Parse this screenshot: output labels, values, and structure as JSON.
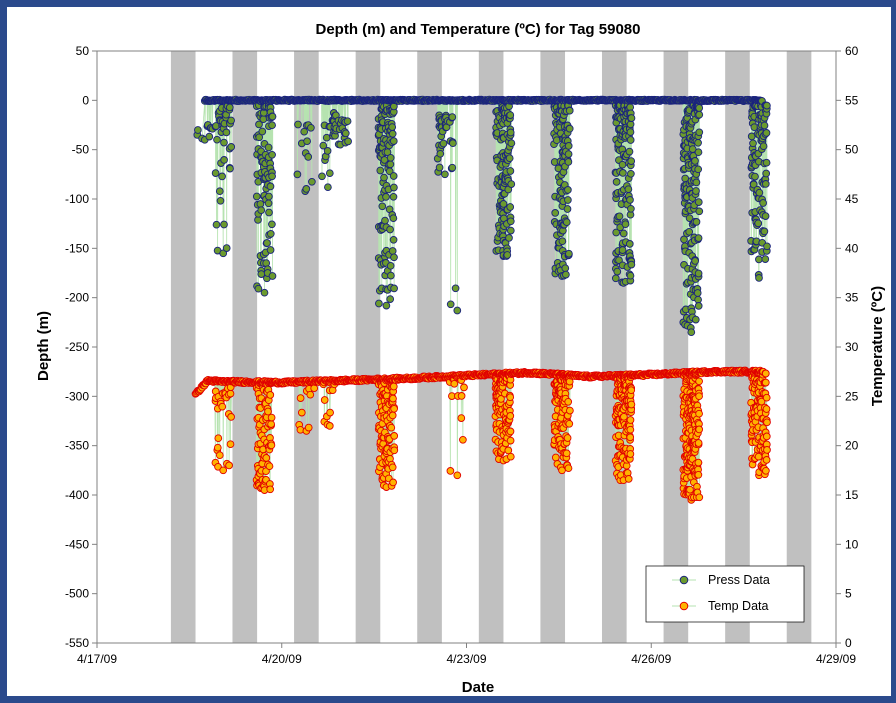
{
  "chart_data": {
    "type": "scatter",
    "title": "Depth (m) and Temperature (ºC) for Tag 59080",
    "xlabel": "Date",
    "ylabel": "Depth (m)",
    "y2label": "Temperature (ºC)",
    "xlim": [
      "4/17/09",
      "4/29/09"
    ],
    "xticks": [
      "4/17/09",
      "4/20/09",
      "4/23/09",
      "4/26/09",
      "4/29/09"
    ],
    "ylim": [
      -550,
      50
    ],
    "yticks": [
      50,
      0,
      -50,
      -100,
      -150,
      -200,
      -250,
      -300,
      -350,
      -400,
      -450,
      -500,
      -550
    ],
    "y2lim": [
      0,
      60
    ],
    "y2ticks": [
      60,
      55,
      50,
      45,
      40,
      35,
      30,
      25,
      20,
      15,
      10,
      5,
      0
    ],
    "grid": false,
    "legend_position": "bottom-right",
    "night_shading": {
      "color": "#c0c0c0",
      "bands_day_of_april": [
        [
          18.2,
          18.6
        ],
        [
          19.2,
          19.6
        ],
        [
          20.2,
          20.6
        ],
        [
          21.2,
          21.6
        ],
        [
          22.2,
          22.6
        ],
        [
          23.2,
          23.6
        ],
        [
          24.2,
          24.6
        ],
        [
          25.2,
          25.6
        ],
        [
          26.2,
          26.6
        ],
        [
          27.2,
          27.6
        ],
        [
          28.2,
          28.6
        ]
      ]
    },
    "series": [
      {
        "name": "Press Data",
        "axis": "left",
        "marker_fill": "#6b9a2e",
        "marker_edge": "#1a237e",
        "line_color": "#b6e3b0",
        "bursts": [
          {
            "day": 18.75,
            "min": -40,
            "max": -25,
            "n": 10
          },
          {
            "day": 19.05,
            "min": -155,
            "max": -5,
            "n": 40
          },
          {
            "day": 19.72,
            "min": -195,
            "max": -5,
            "n": 90
          },
          {
            "day": 20.38,
            "min": -92,
            "max": -20,
            "n": 12
          },
          {
            "day": 20.75,
            "min": -88,
            "max": -10,
            "n": 14
          },
          {
            "day": 20.95,
            "min": -45,
            "max": -20,
            "n": 25
          },
          {
            "day": 21.7,
            "min": -208,
            "max": -5,
            "n": 120
          },
          {
            "day": 22.65,
            "min": -75,
            "max": -15,
            "n": 35
          },
          {
            "day": 22.85,
            "min": -213,
            "max": -190,
            "n": 2
          },
          {
            "day": 23.6,
            "min": -158,
            "max": -5,
            "n": 130
          },
          {
            "day": 24.55,
            "min": -178,
            "max": -5,
            "n": 120
          },
          {
            "day": 25.55,
            "min": -185,
            "max": -5,
            "n": 140
          },
          {
            "day": 26.65,
            "min": -235,
            "max": -5,
            "n": 170
          },
          {
            "day": 27.75,
            "min": -180,
            "max": -5,
            "n": 110
          }
        ],
        "surface_range": [
          18.75,
          27.8
        ],
        "surface_depth": 0
      },
      {
        "name": "Temp Data",
        "axis": "right",
        "marker_fill": "#ffb300",
        "marker_edge": "#e00000",
        "line_color": "#b6e3b0",
        "baseline": [
          [
            18.6,
            25.2
          ],
          [
            18.8,
            26.6
          ],
          [
            19.0,
            26.5
          ],
          [
            20.0,
            26.4
          ],
          [
            21.0,
            26.6
          ],
          [
            22.0,
            26.8
          ],
          [
            23.0,
            27.1
          ],
          [
            24.0,
            27.4
          ],
          [
            25.0,
            27.0
          ],
          [
            26.0,
            27.2
          ],
          [
            27.0,
            27.5
          ],
          [
            27.8,
            27.5
          ]
        ],
        "bursts": [
          {
            "day": 19.05,
            "min": 17.5,
            "max": 26.5,
            "n": 30
          },
          {
            "day": 19.72,
            "min": 15.5,
            "max": 26.4,
            "n": 90
          },
          {
            "day": 20.4,
            "min": 21.5,
            "max": 26.4,
            "n": 10
          },
          {
            "day": 20.78,
            "min": 22.0,
            "max": 26.5,
            "n": 10
          },
          {
            "day": 21.7,
            "min": 15.8,
            "max": 26.7,
            "n": 110
          },
          {
            "day": 22.85,
            "min": 17.0,
            "max": 27.0,
            "n": 12
          },
          {
            "day": 23.6,
            "min": 18.5,
            "max": 27.3,
            "n": 130
          },
          {
            "day": 24.55,
            "min": 17.5,
            "max": 27.2,
            "n": 120
          },
          {
            "day": 25.55,
            "min": 16.5,
            "max": 27.0,
            "n": 150
          },
          {
            "day": 26.65,
            "min": 14.5,
            "max": 27.4,
            "n": 190
          },
          {
            "day": 27.75,
            "min": 17.0,
            "max": 27.5,
            "n": 120
          }
        ]
      }
    ]
  }
}
